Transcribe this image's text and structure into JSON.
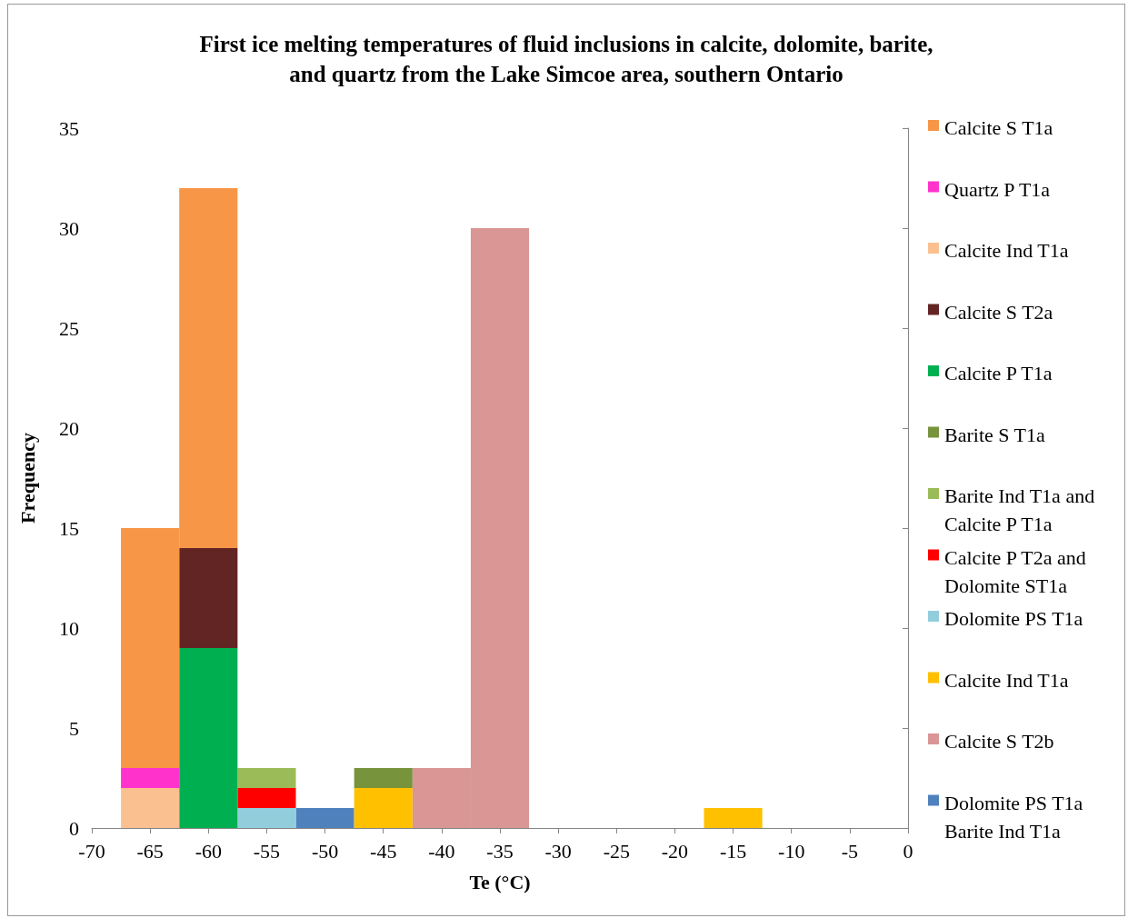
{
  "chart_data": {
    "type": "bar",
    "stacked": true,
    "title": "First ice melting temperatures of fluid inclusions in calcite, dolomite, barite,\nand quartz from the Lake Simcoe area, southern Ontario",
    "xlabel": "Te (°C)",
    "ylabel": "Frequency",
    "x": [
      -65,
      -60,
      -55,
      -50,
      -45,
      -40,
      -35,
      -15
    ],
    "series": [
      {
        "name": "Dolomite PS T1a Barite Ind T1a",
        "color": "#4f81bd",
        "values": [
          null,
          null,
          null,
          1,
          null,
          null,
          null,
          null
        ]
      },
      {
        "name": "Calcite S T2b",
        "color": "#d99694",
        "values": [
          null,
          null,
          null,
          null,
          null,
          3,
          30,
          null
        ]
      },
      {
        "name": "Calcite Ind T1a",
        "color": "#ffc000",
        "values": [
          null,
          null,
          null,
          null,
          2,
          null,
          null,
          1
        ]
      },
      {
        "name": "Dolomite PS T1a",
        "color": "#92cddc",
        "values": [
          null,
          null,
          1,
          null,
          null,
          null,
          null,
          null
        ]
      },
      {
        "name": "Calcite P T2a and Dolomite ST1a",
        "color": "#ff0000",
        "values": [
          null,
          null,
          1,
          null,
          null,
          null,
          null,
          null
        ]
      },
      {
        "name": "Barite Ind T1a and Calcite P T1a",
        "color": "#9bbb59",
        "values": [
          null,
          null,
          1,
          null,
          null,
          null,
          null,
          null
        ]
      },
      {
        "name": "Barite S T1a",
        "color": "#77933c",
        "values": [
          null,
          null,
          null,
          null,
          1,
          null,
          null,
          null
        ]
      },
      {
        "name": "Calcite P T1a",
        "color": "#00b050",
        "values": [
          null,
          9,
          null,
          null,
          null,
          null,
          null,
          null
        ]
      },
      {
        "name": "Calcite S T2a",
        "color": "#632523",
        "values": [
          null,
          5,
          null,
          null,
          null,
          null,
          null,
          null
        ]
      },
      {
        "name": "Calcite Ind T1a",
        "color": "#fac090",
        "values": [
          2,
          null,
          null,
          null,
          null,
          null,
          null,
          null
        ]
      },
      {
        "name": "Quartz P T1a",
        "color": "#ff33cc",
        "values": [
          1,
          null,
          null,
          null,
          null,
          null,
          null,
          null
        ]
      },
      {
        "name": "Calcite S T1a",
        "color": "#f79646",
        "values": [
          12,
          18,
          null,
          null,
          null,
          null,
          null,
          null
        ]
      }
    ],
    "xlim": [
      -70,
      0
    ],
    "xticks": [
      -70,
      -65,
      -60,
      -55,
      -50,
      -45,
      -40,
      -35,
      -30,
      -25,
      -20,
      -15,
      -10,
      -5,
      0
    ],
    "ylim": [
      0,
      35
    ],
    "yticks": [
      0,
      5,
      10,
      15,
      20,
      25,
      30,
      35
    ],
    "grid": false,
    "legend": "right"
  }
}
